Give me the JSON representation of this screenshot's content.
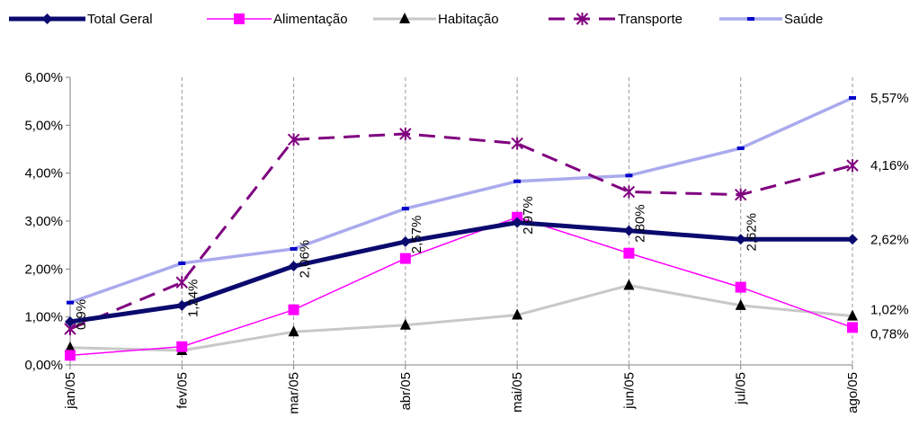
{
  "chart_data": {
    "type": "line",
    "categories": [
      "jan/05",
      "fev/05",
      "mar/05",
      "abr/05",
      "mai/05",
      "jun/05",
      "jul/05",
      "ago/05"
    ],
    "ylim": [
      0,
      6
    ],
    "yticks": [
      "0,00%",
      "1,00%",
      "2,00%",
      "3,00%",
      "4,00%",
      "5,00%",
      "6,00%"
    ],
    "grid": "vertical dashed",
    "legend_position": "top",
    "series": [
      {
        "name": "Total Geral",
        "color": "#0a0a6e",
        "marker": "diamond",
        "values": [
          0.9,
          1.24,
          2.06,
          2.57,
          2.97,
          2.8,
          2.62,
          2.62
        ],
        "data_labels": [
          "0,9%",
          "1,24%",
          "2,06%",
          "2,57%",
          "2,97%",
          "2,80%",
          "2,62%",
          ""
        ]
      },
      {
        "name": "Alimentação",
        "color": "#ff00ff",
        "marker": "square",
        "values": [
          0.2,
          0.38,
          1.15,
          2.22,
          3.08,
          2.33,
          1.62,
          0.78
        ]
      },
      {
        "name": "Habitação",
        "color": "#c8c8c8",
        "marker": "triangle",
        "values": [
          0.36,
          0.3,
          0.69,
          0.83,
          1.04,
          1.66,
          1.24,
          1.02
        ]
      },
      {
        "name": "Transporte",
        "color": "#800080",
        "marker": "asterisk",
        "values": [
          0.75,
          1.72,
          4.7,
          4.82,
          4.62,
          3.61,
          3.55,
          4.16
        ]
      },
      {
        "name": "Saúde",
        "color": "#aaaaee",
        "marker": "dash",
        "values": [
          1.3,
          2.12,
          2.42,
          3.26,
          3.83,
          3.95,
          4.52,
          5.57
        ]
      }
    ],
    "end_labels": [
      "5,57%",
      "4,16%",
      "2,62%",
      "1,02%",
      "0,78%"
    ]
  }
}
